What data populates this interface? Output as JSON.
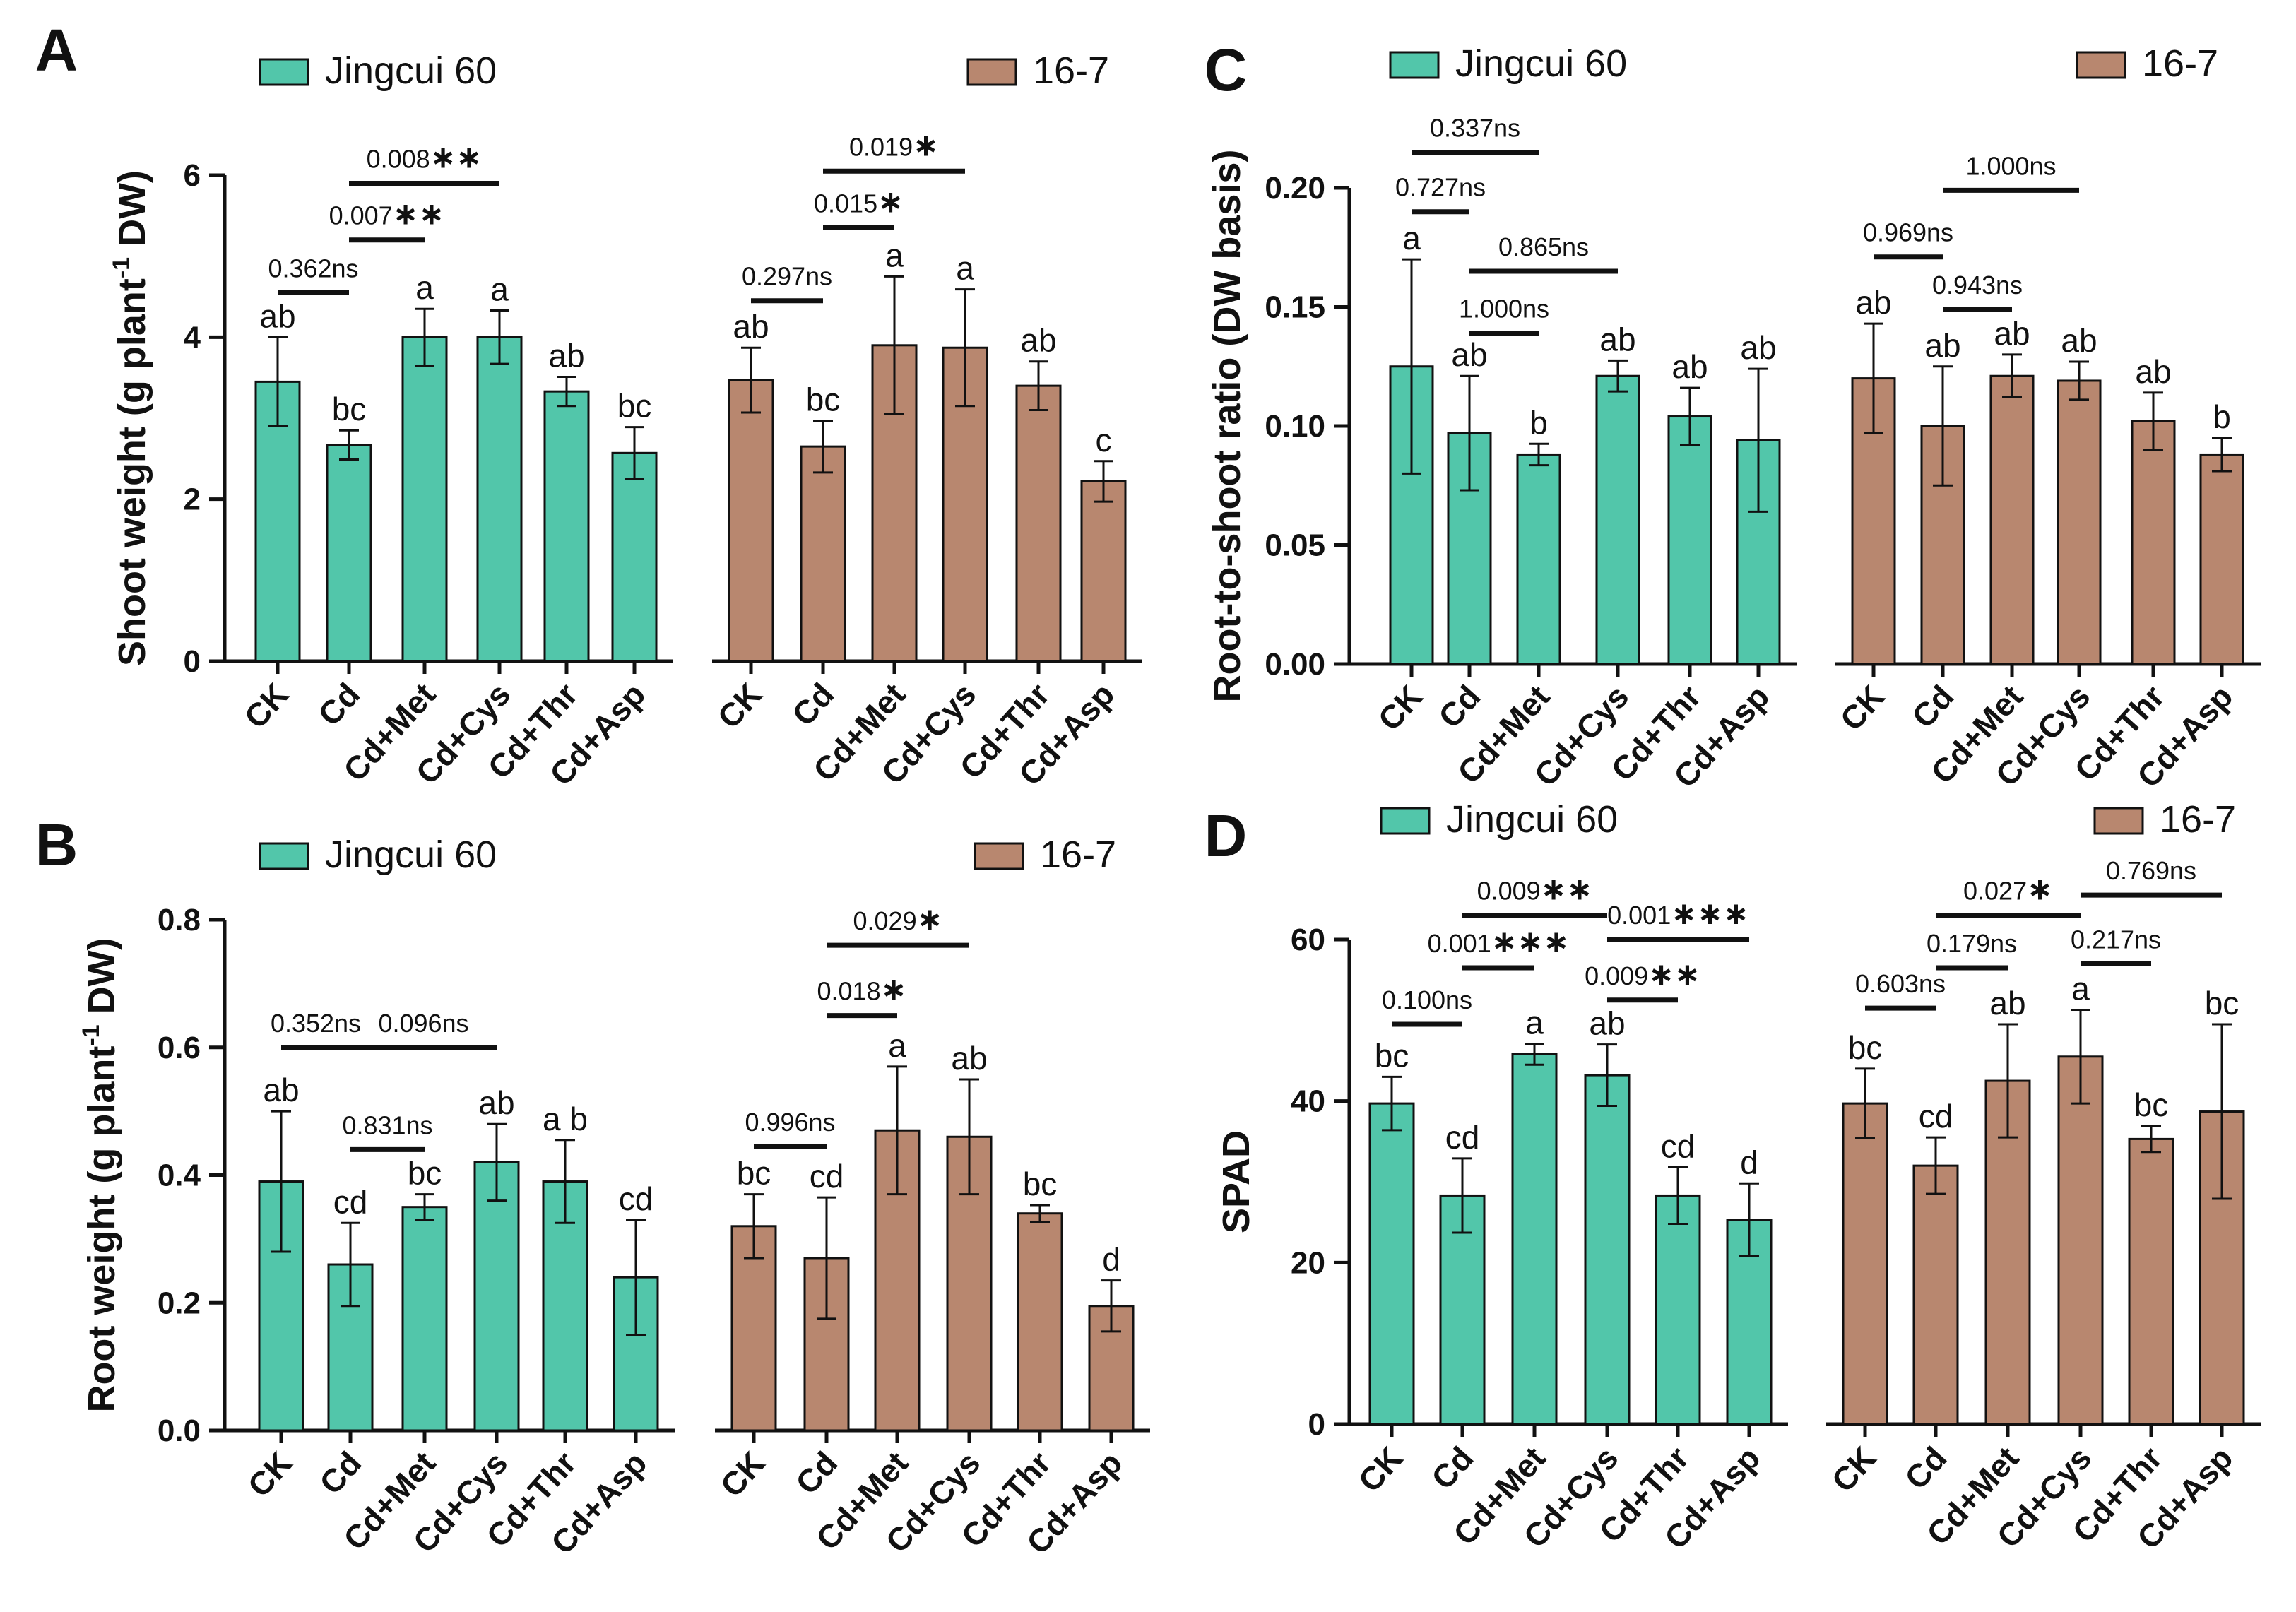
{
  "colors": {
    "jingcui": "#52c6aa",
    "line167": "#b8876f",
    "axis": "#111111"
  },
  "legend_labels": {
    "jingcui": "Jingcui 60",
    "line167": "16-7"
  },
  "chart_data": [
    {
      "panel": "A",
      "type": "bar",
      "ylabel_main": "Shoot weight (g plant",
      "ylabel_sup": "-1",
      "ylabel_end": " DW)",
      "ylim": [
        0,
        6
      ],
      "yticks": [
        "0",
        "2",
        "4",
        "6"
      ],
      "ytick_values": [
        0,
        2,
        4,
        6
      ],
      "categories": [
        "CK",
        "Cd",
        "Cd+Met",
        "Cd+Cys",
        "Cd+Thr",
        "Cd+Asp"
      ],
      "series": [
        {
          "name": "Jingcui 60",
          "values": [
            3.45,
            2.67,
            4.0,
            4.0,
            3.33,
            2.57
          ],
          "errors": [
            0.55,
            0.18,
            0.35,
            0.33,
            0.18,
            0.32
          ],
          "letters": [
            "ab",
            "bc",
            "a",
            "a",
            "ab",
            "bc"
          ]
        },
        {
          "name": "16-7",
          "values": [
            3.47,
            2.65,
            3.9,
            3.87,
            3.4,
            2.22
          ],
          "errors": [
            0.4,
            0.32,
            0.85,
            0.72,
            0.3,
            0.25
          ],
          "letters": [
            "ab",
            "bc",
            "a",
            "a",
            "ab",
            "c"
          ]
        }
      ],
      "comparisons": [
        {
          "series": 0,
          "from": 0,
          "to": 1,
          "at": 4.55,
          "label": "0.362ns",
          "stars": ""
        },
        {
          "series": 0,
          "from": 1,
          "to": 2,
          "at": 5.2,
          "label": "0.007",
          "stars": "∗∗"
        },
        {
          "series": 0,
          "from": 1,
          "to": 3,
          "at": 5.9,
          "label": "0.008",
          "stars": "∗∗"
        },
        {
          "series": 1,
          "from": 0,
          "to": 1,
          "at": 4.45,
          "label": "0.297ns",
          "stars": ""
        },
        {
          "series": 1,
          "from": 1,
          "to": 2,
          "at": 5.35,
          "label": "0.015",
          "stars": "∗"
        },
        {
          "series": 1,
          "from": 1,
          "to": 3,
          "at": 6.05,
          "label": "0.019",
          "stars": "∗"
        }
      ]
    },
    {
      "panel": "B",
      "type": "bar",
      "ylabel_main": "Root weight (g plant",
      "ylabel_sup": "-1",
      "ylabel_end": " DW)",
      "ylim": [
        0,
        0.8
      ],
      "yticks": [
        "0.0",
        "0.2",
        "0.4",
        "0.6",
        "0.8"
      ],
      "ytick_values": [
        0,
        0.2,
        0.4,
        0.6,
        0.8
      ],
      "categories": [
        "CK",
        "Cd",
        "Cd+Met",
        "Cd+Cys",
        "Cd+Thr",
        "Cd+Asp"
      ],
      "series": [
        {
          "name": "Jingcui 60",
          "values": [
            0.39,
            0.26,
            0.35,
            0.42,
            0.39,
            0.24
          ],
          "errors": [
            0.11,
            0.065,
            0.02,
            0.06,
            0.065,
            0.09
          ],
          "letters": [
            "ab",
            "cd",
            "bc",
            "ab",
            "a b",
            "cd"
          ]
        },
        {
          "name": "16-7",
          "values": [
            0.32,
            0.27,
            0.47,
            0.46,
            0.34,
            0.195
          ],
          "errors": [
            0.05,
            0.095,
            0.1,
            0.09,
            0.013,
            0.04
          ],
          "letters": [
            "bc",
            "cd",
            "a",
            "ab",
            "bc",
            "d"
          ]
        }
      ],
      "comparisons": [
        {
          "series": 0,
          "from": 0,
          "to": 1,
          "at": 0.6,
          "label": "0.352ns",
          "stars": ""
        },
        {
          "series": 0,
          "from": 1,
          "to": 3,
          "at": 0.6,
          "label": "0.096ns",
          "stars": ""
        },
        {
          "series": 0,
          "from": 1,
          "to": 2,
          "at": 0.44,
          "label": "0.831ns",
          "stars": ""
        },
        {
          "series": 1,
          "from": 0,
          "to": 1,
          "at": 0.445,
          "label": "0.996ns",
          "stars": ""
        },
        {
          "series": 1,
          "from": 1,
          "to": 2,
          "at": 0.65,
          "label": "0.018",
          "stars": "∗"
        },
        {
          "series": 1,
          "from": 1,
          "to": 3,
          "at": 0.76,
          "label": "0.029",
          "stars": "∗"
        }
      ]
    },
    {
      "panel": "C",
      "type": "bar",
      "ylabel_main": "Root-to-shoot ratio (DW basis)",
      "ylabel_sup": "",
      "ylabel_end": "",
      "ylim": [
        0,
        0.2
      ],
      "yticks": [
        "0.00",
        "0.05",
        "0.10",
        "0.15",
        "0.20"
      ],
      "ytick_values": [
        0,
        0.05,
        0.1,
        0.15,
        0.2
      ],
      "categories": [
        "CK",
        "Cd",
        "Cd+Met",
        "Cd+Cys",
        "Cd+Thr",
        "Cd+Asp"
      ],
      "series": [
        {
          "name": "Jingcui 60",
          "values": [
            0.125,
            0.097,
            0.088,
            0.121,
            0.104,
            0.094
          ],
          "errors": [
            0.045,
            0.024,
            0.0045,
            0.0065,
            0.012,
            0.03
          ],
          "letters": [
            "a",
            "ab",
            "b",
            "ab",
            "ab",
            "ab"
          ]
        },
        {
          "name": "16-7",
          "values": [
            0.12,
            0.1,
            0.121,
            0.119,
            0.102,
            0.088
          ],
          "errors": [
            0.023,
            0.025,
            0.009,
            0.008,
            0.012,
            0.007
          ],
          "letters": [
            "ab",
            "ab",
            "ab",
            "ab",
            "ab",
            "b"
          ]
        }
      ],
      "comparisons": [
        {
          "series": 0,
          "from": 0,
          "to": 1,
          "at": 0.19,
          "label": "0.727ns",
          "stars": ""
        },
        {
          "series": 0,
          "from": 0,
          "to": 2,
          "at": 0.215,
          "label": "0.337ns",
          "stars": ""
        },
        {
          "series": 0,
          "from": 1,
          "to": 3,
          "at": 0.165,
          "label": "0.865ns",
          "stars": ""
        },
        {
          "series": 0,
          "from": 1,
          "to": 2,
          "at": 0.139,
          "label": "1.000ns",
          "stars": ""
        },
        {
          "series": 1,
          "from": 0,
          "to": 1,
          "at": 0.171,
          "label": "0.969ns",
          "stars": ""
        },
        {
          "series": 1,
          "from": 1,
          "to": 3,
          "at": 0.199,
          "label": "1.000ns",
          "stars": ""
        },
        {
          "series": 1,
          "from": 1,
          "to": 2,
          "at": 0.149,
          "label": "0.943ns",
          "stars": ""
        }
      ]
    },
    {
      "panel": "D",
      "type": "bar",
      "ylabel_main": "SPAD",
      "ylabel_sup": "",
      "ylabel_end": "",
      "ylim": [
        0,
        60
      ],
      "yticks": [
        "0",
        "20",
        "40",
        "60"
      ],
      "ytick_values": [
        0,
        20,
        40,
        60
      ],
      "categories": [
        "CK",
        "Cd",
        "Cd+Met",
        "Cd+Cys",
        "Cd+Thr",
        "Cd+Asp"
      ],
      "series": [
        {
          "name": "Jingcui 60",
          "values": [
            39.7,
            28.3,
            45.8,
            43.2,
            28.3,
            25.3
          ],
          "errors": [
            3.3,
            4.6,
            1.3,
            3.8,
            3.5,
            4.5
          ],
          "letters": [
            "bc",
            "cd",
            "a",
            "ab",
            "cd",
            "d"
          ]
        },
        {
          "name": "16-7",
          "values": [
            39.7,
            32.0,
            42.5,
            45.5,
            35.3,
            38.7
          ],
          "errors": [
            4.3,
            3.5,
            7.0,
            5.8,
            1.6,
            10.8
          ],
          "letters": [
            "bc",
            "cd",
            "ab",
            "a",
            "bc",
            "bc"
          ]
        }
      ],
      "comparisons": [
        {
          "series": 0,
          "from": 0,
          "to": 1,
          "at": 49.5,
          "label": "0.100ns",
          "stars": ""
        },
        {
          "series": 0,
          "from": 1,
          "to": 2,
          "at": 56.5,
          "label": "0.001",
          "stars": "∗∗∗"
        },
        {
          "series": 0,
          "from": 1,
          "to": 3,
          "at": 63.0,
          "label": "0.009",
          "stars": "∗∗"
        },
        {
          "series": 0,
          "from": 3,
          "to": 4,
          "at": 52.5,
          "label": "0.009",
          "stars": "∗∗"
        },
        {
          "series": 0,
          "from": 3,
          "to": 5,
          "at": 60.0,
          "label": "0.001",
          "stars": "∗∗∗"
        },
        {
          "series": 1,
          "from": 0,
          "to": 1,
          "at": 51.5,
          "label": "0.603ns",
          "stars": ""
        },
        {
          "series": 1,
          "from": 1,
          "to": 2,
          "at": 56.5,
          "label": "0.179ns",
          "stars": ""
        },
        {
          "series": 1,
          "from": 1,
          "to": 3,
          "at": 63.0,
          "label": "0.027",
          "stars": "∗"
        },
        {
          "series": 1,
          "from": 3,
          "to": 4,
          "at": 57.0,
          "label": "0.217ns",
          "stars": ""
        },
        {
          "series": 1,
          "from": 3,
          "to": 5,
          "at": 65.5,
          "label": "0.769ns",
          "stars": ""
        }
      ]
    }
  ]
}
